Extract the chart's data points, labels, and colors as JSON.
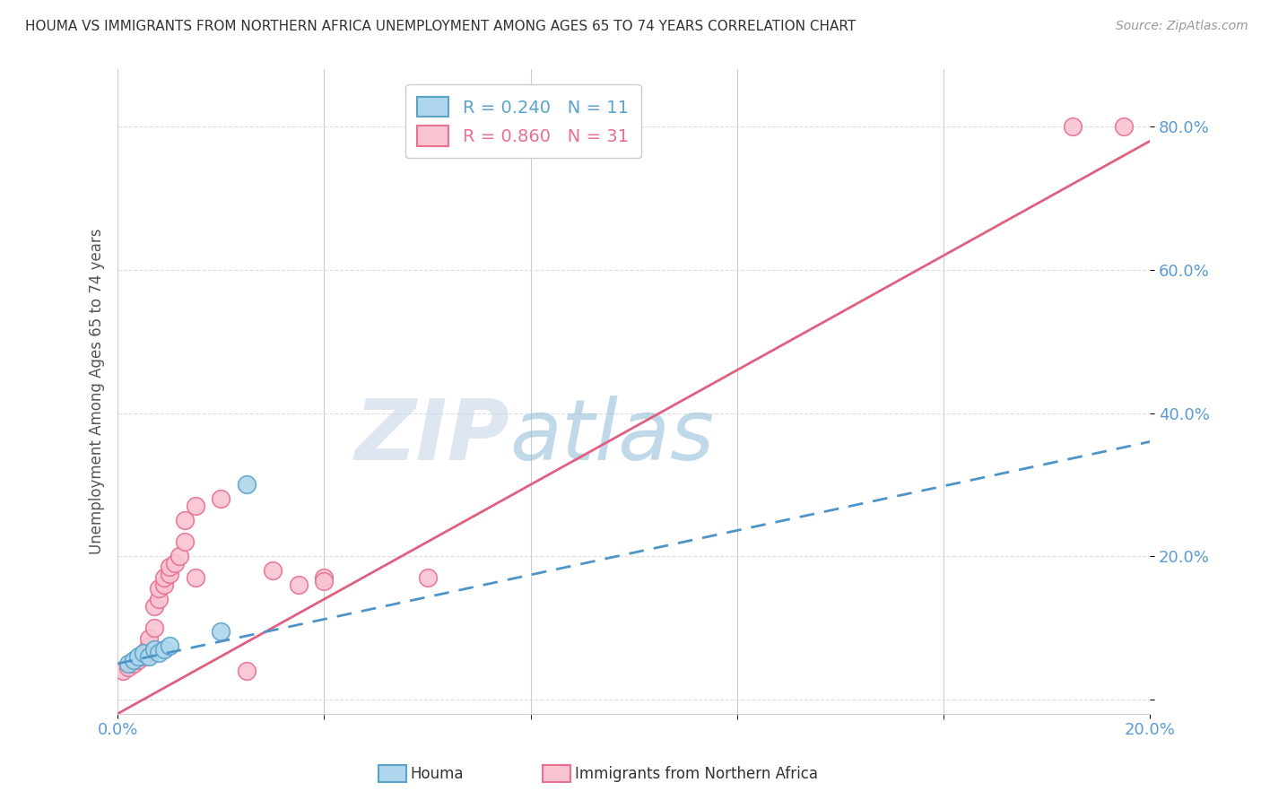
{
  "title": "HOUMA VS IMMIGRANTS FROM NORTHERN AFRICA UNEMPLOYMENT AMONG AGES 65 TO 74 YEARS CORRELATION CHART",
  "source": "Source: ZipAtlas.com",
  "ylabel": "Unemployment Among Ages 65 to 74 years",
  "xlim": [
    0.0,
    0.2
  ],
  "ylim": [
    -0.02,
    0.88
  ],
  "xtick_positions": [
    0.0,
    0.2
  ],
  "xtick_labels": [
    "0.0%",
    "20.0%"
  ],
  "ytick_positions": [
    0.0,
    0.2,
    0.4,
    0.6,
    0.8
  ],
  "ytick_labels": [
    "",
    "20.0%",
    "40.0%",
    "60.0%",
    "80.0%"
  ],
  "houma_fill_color": "#AED6EC",
  "houma_edge_color": "#5BA3C9",
  "immigrants_fill_color": "#F9C4D2",
  "immigrants_edge_color": "#E87090",
  "houma_line_color": "#4D94C9",
  "immigrants_line_color": "#E06080",
  "houma_R": 0.24,
  "houma_N": 11,
  "immigrants_R": 0.86,
  "immigrants_N": 31,
  "houma_points": [
    [
      0.002,
      0.05
    ],
    [
      0.003,
      0.055
    ],
    [
      0.004,
      0.06
    ],
    [
      0.005,
      0.065
    ],
    [
      0.006,
      0.06
    ],
    [
      0.007,
      0.07
    ],
    [
      0.008,
      0.065
    ],
    [
      0.009,
      0.07
    ],
    [
      0.01,
      0.075
    ],
    [
      0.02,
      0.095
    ],
    [
      0.025,
      0.3
    ]
  ],
  "immigrants_points": [
    [
      0.001,
      0.04
    ],
    [
      0.002,
      0.045
    ],
    [
      0.003,
      0.05
    ],
    [
      0.004,
      0.055
    ],
    [
      0.005,
      0.06
    ],
    [
      0.005,
      0.065
    ],
    [
      0.006,
      0.075
    ],
    [
      0.006,
      0.085
    ],
    [
      0.007,
      0.1
    ],
    [
      0.007,
      0.13
    ],
    [
      0.008,
      0.14
    ],
    [
      0.008,
      0.155
    ],
    [
      0.009,
      0.16
    ],
    [
      0.009,
      0.17
    ],
    [
      0.01,
      0.175
    ],
    [
      0.01,
      0.185
    ],
    [
      0.011,
      0.19
    ],
    [
      0.012,
      0.2
    ],
    [
      0.013,
      0.22
    ],
    [
      0.013,
      0.25
    ],
    [
      0.015,
      0.17
    ],
    [
      0.015,
      0.27
    ],
    [
      0.02,
      0.28
    ],
    [
      0.025,
      0.04
    ],
    [
      0.03,
      0.18
    ],
    [
      0.035,
      0.16
    ],
    [
      0.04,
      0.17
    ],
    [
      0.04,
      0.165
    ],
    [
      0.06,
      0.17
    ],
    [
      0.185,
      0.8
    ],
    [
      0.195,
      0.8
    ]
  ],
  "watermark_zip": "ZIP",
  "watermark_atlas": "atlas",
  "background_color": "#FFFFFF",
  "grid_color": "#DDDDDD"
}
